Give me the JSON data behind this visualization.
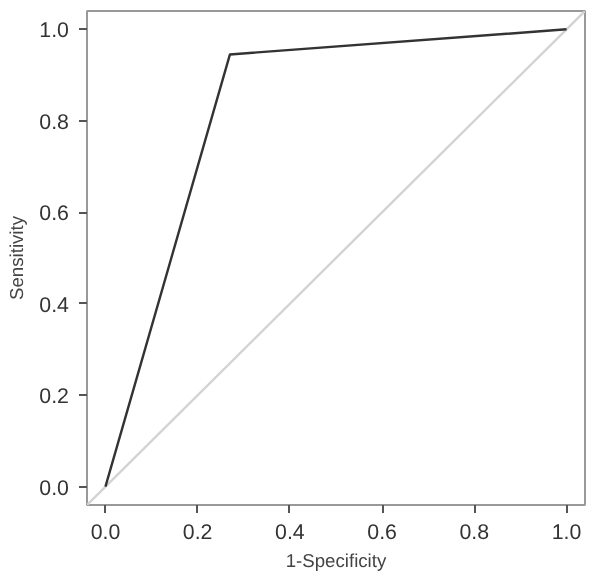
{
  "chart_data": {
    "type": "line",
    "xlabel": "1-Specificity",
    "ylabel": "Sensitivity",
    "series": [
      {
        "color": "#d3d3d3",
        "x": [
          -0.04,
          1.04
        ],
        "values": [
          -0.04,
          1.04
        ]
      },
      {
        "color": "#333333",
        "x": [
          0,
          0.27,
          1
        ],
        "values": [
          0,
          0.945,
          1
        ]
      }
    ],
    "xlim": [
      -0.04,
      1.04
    ],
    "ylim": [
      -0.04,
      1.04
    ],
    "xticks": [
      {
        "value": 0,
        "label": "0.0"
      },
      0.2,
      0.4,
      0.6,
      0.8,
      {
        "value": 1,
        "label": "1.0"
      }
    ],
    "yticks": [
      {
        "value": 0,
        "label": "0.0"
      },
      0.2,
      0.4,
      0.6,
      0.8,
      {
        "value": 1,
        "label": "1.0"
      }
    ],
    "grid": false,
    "marker": "none",
    "line_style": "solid"
  }
}
